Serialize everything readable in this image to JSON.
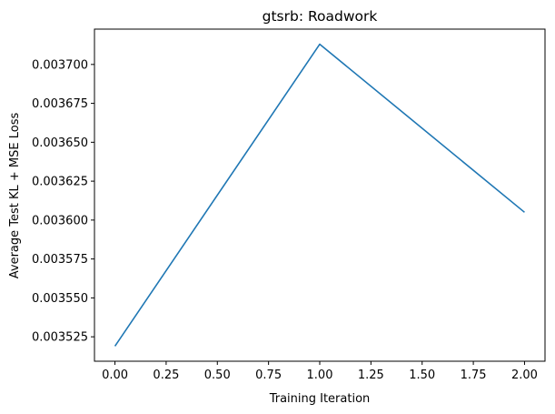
{
  "chart_data": {
    "type": "line",
    "title": "gtsrb: Roadwork",
    "xlabel": "Training Iteration",
    "ylabel": "Average Test KL + MSE Loss",
    "x": [
      0,
      1,
      2
    ],
    "series": [
      {
        "values": [
          0.003519,
          0.003713,
          0.003605
        ],
        "color": "#1f77b4"
      }
    ],
    "xlim": [
      -0.1,
      2.1
    ],
    "ylim": [
      0.0035093,
      0.0037227
    ],
    "xticks": [
      0.0,
      0.25,
      0.5,
      0.75,
      1.0,
      1.25,
      1.5,
      1.75,
      2.0
    ],
    "xtick_labels": [
      "0.00",
      "0.25",
      "0.50",
      "0.75",
      "1.00",
      "1.25",
      "1.50",
      "1.75",
      "2.00"
    ],
    "yticks": [
      0.003525,
      0.00355,
      0.003575,
      0.0036,
      0.003625,
      0.00365,
      0.003675,
      0.0037
    ],
    "ytick_labels": [
      "0.003525",
      "0.003550",
      "0.003575",
      "0.003600",
      "0.003625",
      "0.003650",
      "0.003675",
      "0.003700"
    ],
    "grid": false,
    "legend": "none"
  }
}
